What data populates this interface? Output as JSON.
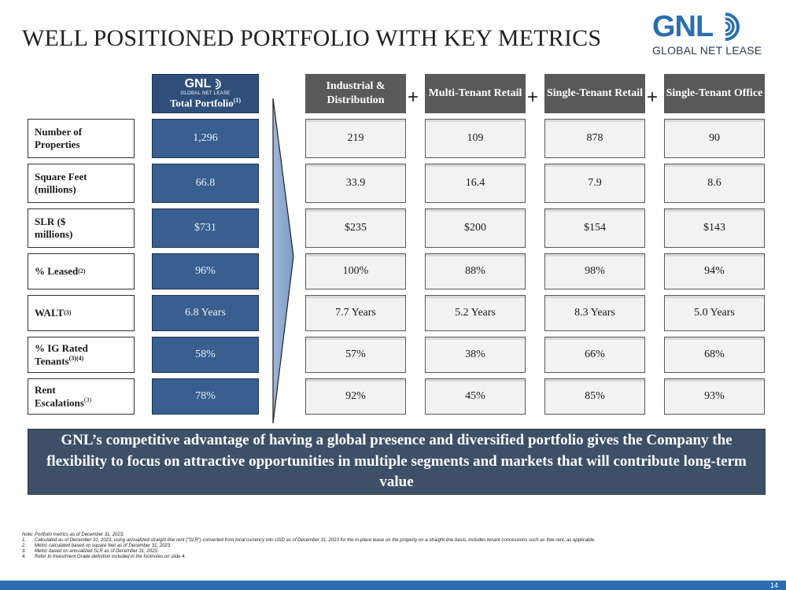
{
  "title": "WELL POSITIONED PORTFOLIO WITH KEY METRICS",
  "logo": {
    "text": "GNL",
    "subtitle": "GLOBAL NET LEASE",
    "color": "#2a6db3"
  },
  "total_column": {
    "mini_logo_text": "GNL",
    "mini_logo_subtitle": "GLOBAL NET LEASE",
    "label": "Total Portfolio",
    "label_sup": "(1)",
    "values": [
      "1,296",
      "66.8",
      "$731",
      "96%",
      "6.8 Years",
      "58%",
      "78%"
    ]
  },
  "rows": [
    {
      "label": "Number of Properties",
      "sup": ""
    },
    {
      "label": "Square Feet (millions)",
      "sup": ""
    },
    {
      "label": "SLR ($ millions)",
      "sup": ""
    },
    {
      "label": "% Leased",
      "sup": "(2)"
    },
    {
      "label": "WALT",
      "sup": "(3)"
    },
    {
      "label": "% IG Rated Tenants",
      "sup": "(3)(4)"
    },
    {
      "label": "Rent Escalations",
      "sup": "(3)"
    }
  ],
  "segments": [
    {
      "name": "Industrial & Distribution",
      "values": [
        "219",
        "33.9",
        "$235",
        "100%",
        "7.7 Years",
        "57%",
        "92%"
      ]
    },
    {
      "name": "Multi-Tenant Retail",
      "values": [
        "109",
        "16.4",
        "$200",
        "88%",
        "5.2 Years",
        "38%",
        "45%"
      ]
    },
    {
      "name": "Single-Tenant Retail",
      "values": [
        "878",
        "7.9",
        "$154",
        "98%",
        "8.3 Years",
        "66%",
        "85%"
      ]
    },
    {
      "name": "Single-Tenant Office",
      "values": [
        "90",
        "8.6",
        "$143",
        "94%",
        "5.0 Years",
        "68%",
        "93%"
      ]
    }
  ],
  "plus_symbol": "+",
  "banner": "GNL’s competitive advantage of having a global presence and diversified portfolio gives the Company the flexibility to focus on attractive opportunities in multiple segments and markets that will contribute long-term value",
  "notes": {
    "intro": "Note: Portfolio metrics as of December 31, 2023.",
    "items": [
      {
        "num": "1.",
        "text": "Calculated as of December 31, 2023, using annualized straight-line rent (“SLR”) converted from local currency into USD as of December 31, 2023 for the in-place lease on the property on a straight-line basis, includes tenant concessions such as free rent, as applicable."
      },
      {
        "num": "2.",
        "text": "Metric calculated based on square feet as of December 31, 2023."
      },
      {
        "num": "3.",
        "text": "Metric based on annualized SLR as of December 31, 2023."
      },
      {
        "num": "4.",
        "text": "Refer to Investment Grade definition included in the footnotes on slide 4."
      }
    ]
  },
  "page_number": "14",
  "colors": {
    "total_fill": "#385f8f",
    "segment_header": "#595959",
    "banner": "#3d5068",
    "footer": "#2a6db3"
  }
}
